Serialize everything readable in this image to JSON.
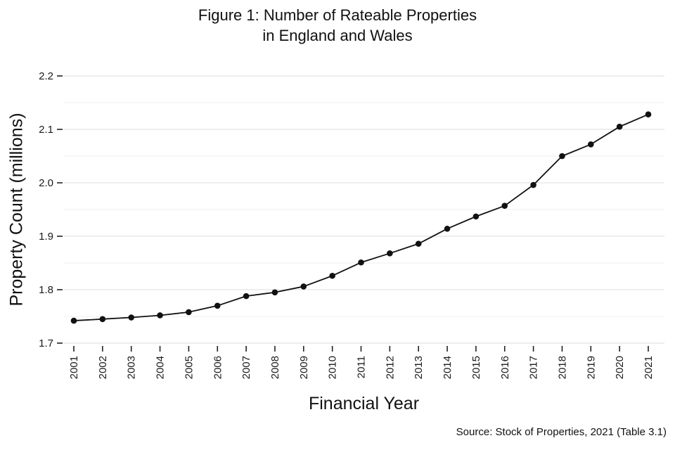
{
  "chart_data": {
    "type": "line",
    "title": "Figure 1: Number of Rateable Properties",
    "subtitle": "in England and Wales",
    "xlabel": "Financial Year",
    "ylabel": "Property Count (millions)",
    "source": "Source: Stock of Properties, 2021 (Table 3.1)",
    "categories": [
      "2001",
      "2002",
      "2003",
      "2004",
      "2005",
      "2006",
      "2007",
      "2008",
      "2009",
      "2010",
      "2011",
      "2012",
      "2013",
      "2014",
      "2015",
      "2016",
      "2017",
      "2018",
      "2019",
      "2020",
      "2021"
    ],
    "values": [
      1.742,
      1.745,
      1.748,
      1.752,
      1.758,
      1.77,
      1.788,
      1.795,
      1.806,
      1.826,
      1.851,
      1.868,
      1.886,
      1.914,
      1.937,
      1.957,
      1.996,
      2.05,
      2.072,
      2.105,
      2.128
    ],
    "ylim": [
      1.7,
      2.2
    ],
    "yticks": [
      "1.7",
      "1.8",
      "1.9",
      "2.0",
      "2.1",
      "2.2"
    ],
    "grid": "horizontal",
    "legend": "none",
    "line_color": "#111111",
    "major_grid_color": "#dedede",
    "minor_grid_color": "#efefef",
    "tick_color": "#222222",
    "tick_label_color": "#1a1a1a"
  }
}
